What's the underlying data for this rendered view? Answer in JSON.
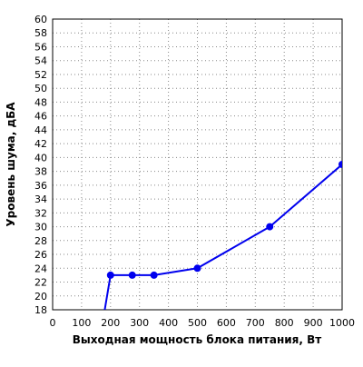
{
  "chart_data": {
    "type": "line",
    "title": "",
    "xlabel": "Выходная мощность блока питания, Вт",
    "ylabel": "Уровень шума, дБА",
    "xlim": [
      0,
      1000
    ],
    "ylim": [
      18,
      60
    ],
    "x_ticks": [
      0,
      100,
      200,
      300,
      400,
      500,
      600,
      700,
      800,
      900,
      1000
    ],
    "y_ticks": [
      18,
      20,
      22,
      24,
      26,
      28,
      30,
      32,
      34,
      36,
      38,
      40,
      42,
      44,
      46,
      48,
      50,
      52,
      54,
      56,
      58,
      60
    ],
    "grid": true,
    "legend": "none",
    "series": [
      {
        "color": "#0000ee",
        "marker": "circle",
        "points": [
          {
            "x": 180,
            "y": 18,
            "marker": false
          },
          {
            "x": 200,
            "y": 23,
            "marker": true
          },
          {
            "x": 275,
            "y": 23,
            "marker": true
          },
          {
            "x": 350,
            "y": 23,
            "marker": true
          },
          {
            "x": 500,
            "y": 24,
            "marker": true
          },
          {
            "x": 750,
            "y": 30,
            "marker": true
          },
          {
            "x": 1000,
            "y": 39,
            "marker": true
          }
        ]
      }
    ]
  }
}
